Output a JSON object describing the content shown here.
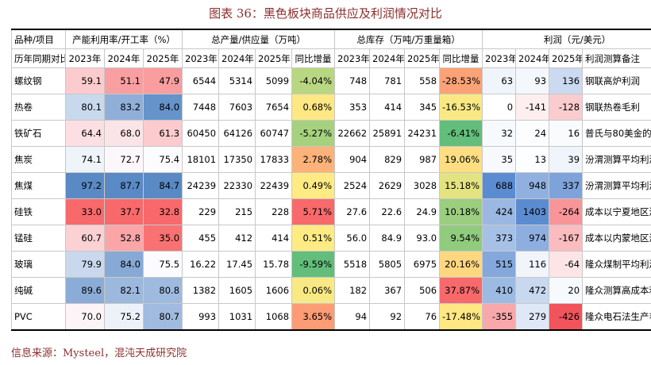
{
  "title": "图表 36：黑色板块商品供应及利润情况对比",
  "table": {
    "groups": [
      "品种/项目",
      "产能利用率/开工率（%）",
      "总产量/供应量（万吨）",
      "总库存（万吨/万重量箱）",
      "利润（元/美元）"
    ],
    "header": [
      "历年同期对比",
      "2023年",
      "2024年",
      "2025年",
      "2023年",
      "2024年",
      "2025年",
      "同比增量",
      "2023年",
      "2024年",
      "2025年",
      "同比增量",
      "2023年",
      "2024年",
      "2025年",
      "利润测算备注"
    ],
    "rows": [
      [
        "螺纹钢",
        "59.1",
        "51.1",
        "47.9",
        "6544",
        "5314",
        "5099",
        "-4.04%",
        "748",
        "781",
        "558",
        "-28.53%",
        "63",
        "93",
        "136",
        "钢联高炉利润"
      ],
      [
        "热卷",
        "80.1",
        "83.2",
        "84.0",
        "7448",
        "7603",
        "7654",
        "0.68%",
        "353",
        "414",
        "345",
        "-16.53%",
        "0",
        "-141",
        "-128",
        "钢联热卷毛利"
      ],
      [
        "铁矿石",
        "64.4",
        "68.0",
        "61.3",
        "60450",
        "64126",
        "60747",
        "-5.27%",
        "22662",
        "25891",
        "24231",
        "-6.41%",
        "32",
        "24",
        "16",
        "普氏与80美金的价差"
      ],
      [
        "焦炭",
        "74.1",
        "72.7",
        "75.4",
        "18101",
        "17350",
        "17833",
        "2.78%",
        "904",
        "829",
        "987",
        "19.06%",
        "35",
        "13",
        "39",
        "汾渭测算平均利润"
      ],
      [
        "焦煤",
        "97.2",
        "87.7",
        "84.7",
        "24239",
        "22330",
        "22439",
        "0.49%",
        "2524",
        "2629",
        "3028",
        "15.18%",
        "688",
        "948",
        "337",
        "汾渭测算平均利润"
      ],
      [
        "硅铁",
        "33.0",
        "37.7",
        "32.8",
        "229",
        "215",
        "228",
        "5.71%",
        "27.6",
        "22.6",
        "24.9",
        "10.18%",
        "424",
        "1403",
        "-264",
        "成本以宁夏地区测算"
      ],
      [
        "锰硅",
        "60.7",
        "52.8",
        "35.0",
        "455",
        "412",
        "414",
        "0.51%",
        "56.0",
        "84.9",
        "93.0",
        "9.54%",
        "373",
        "974",
        "-167",
        "成本以内蒙地区测算"
      ],
      [
        "玻璃",
        "79.9",
        "84.0",
        "75.5",
        "16.22",
        "17.45",
        "15.78",
        "-9.59%",
        "5518",
        "5805",
        "6975",
        "20.16%",
        "515",
        "116",
        "-64",
        "隆众煤制平均利润"
      ],
      [
        "纯碱",
        "89.6",
        "82.1",
        "80.8",
        "1382",
        "1605",
        "1606",
        "0.06%",
        "182",
        "367",
        "506",
        "37.87%",
        "410",
        "472",
        "20",
        "隆众测算高成本利润"
      ],
      [
        "PVC",
        "70.0",
        "75.2",
        "80.7",
        "993",
        "1031",
        "1068",
        "3.65%",
        "94",
        "92",
        "76",
        "-17.48%",
        "-355",
        "279",
        "-426",
        "隆众电石法生产毛利"
      ]
    ]
  },
  "source": "信息来源：Mysteel，混沌天成研究院"
}
